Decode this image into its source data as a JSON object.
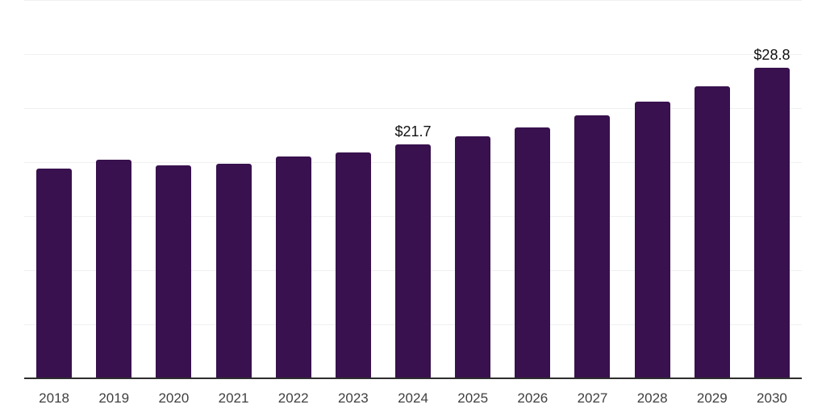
{
  "chart_data": {
    "type": "bar",
    "title": "",
    "xlabel": "",
    "ylabel": "",
    "categories": [
      "2018",
      "2019",
      "2020",
      "2021",
      "2022",
      "2023",
      "2024",
      "2025",
      "2026",
      "2027",
      "2028",
      "2029",
      "2030"
    ],
    "values": [
      19.5,
      20.3,
      19.8,
      19.9,
      20.6,
      21.0,
      21.7,
      22.5,
      23.3,
      24.4,
      25.7,
      27.1,
      28.8
    ],
    "ylim": [
      0,
      35
    ],
    "gridline_step": 5,
    "grid": "horizontal",
    "legend": "none",
    "bar_color": "#38114e",
    "data_labels": [
      {
        "category": "2024",
        "text": "$21.7"
      },
      {
        "category": "2030",
        "text": "$28.8"
      }
    ]
  },
  "colors": {
    "background": "#ffffff",
    "bar": "#38114e",
    "gridline": "#f0f0f0",
    "axis_line": "#2e2e2e",
    "tick_label": "#404040",
    "data_label": "#111111"
  }
}
